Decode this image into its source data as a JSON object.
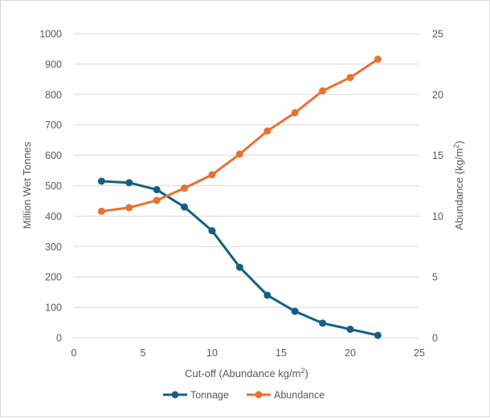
{
  "chart_data": {
    "type": "line",
    "title": "",
    "xlabel": "Cut-off (Abundance kg/m",
    "xlabel_sup": "2",
    "xlabel_suffix": ")",
    "ylabel": "Million Wet Tonnes",
    "y2label": "Abundance (kg/m",
    "y2label_sup": "2",
    "y2label_suffix": ")",
    "xlim": [
      0,
      25
    ],
    "ylim": [
      0,
      1000
    ],
    "y2lim": [
      0,
      25
    ],
    "x_ticks": [
      0,
      5,
      10,
      15,
      20,
      25
    ],
    "y_ticks": [
      0,
      100,
      200,
      300,
      400,
      500,
      600,
      700,
      800,
      900,
      1000
    ],
    "y2_ticks": [
      0,
      5,
      10,
      15,
      20,
      25
    ],
    "grid": true,
    "legend_position": "bottom",
    "series": [
      {
        "name": "Tonnage",
        "axis": "left",
        "color": "#156082",
        "x": [
          2,
          4,
          6,
          8,
          10,
          12,
          14,
          16,
          18,
          20,
          22
        ],
        "values": [
          515,
          510,
          487,
          430,
          352,
          232,
          140,
          87,
          48,
          28,
          8
        ]
      },
      {
        "name": "Abundance",
        "axis": "right",
        "color": "#E97132",
        "x": [
          2,
          4,
          6,
          8,
          10,
          12,
          14,
          16,
          18,
          20,
          22
        ],
        "values": [
          10.4,
          10.7,
          11.3,
          12.3,
          13.4,
          15.1,
          17.0,
          18.5,
          20.3,
          21.4,
          22.9
        ]
      }
    ]
  }
}
